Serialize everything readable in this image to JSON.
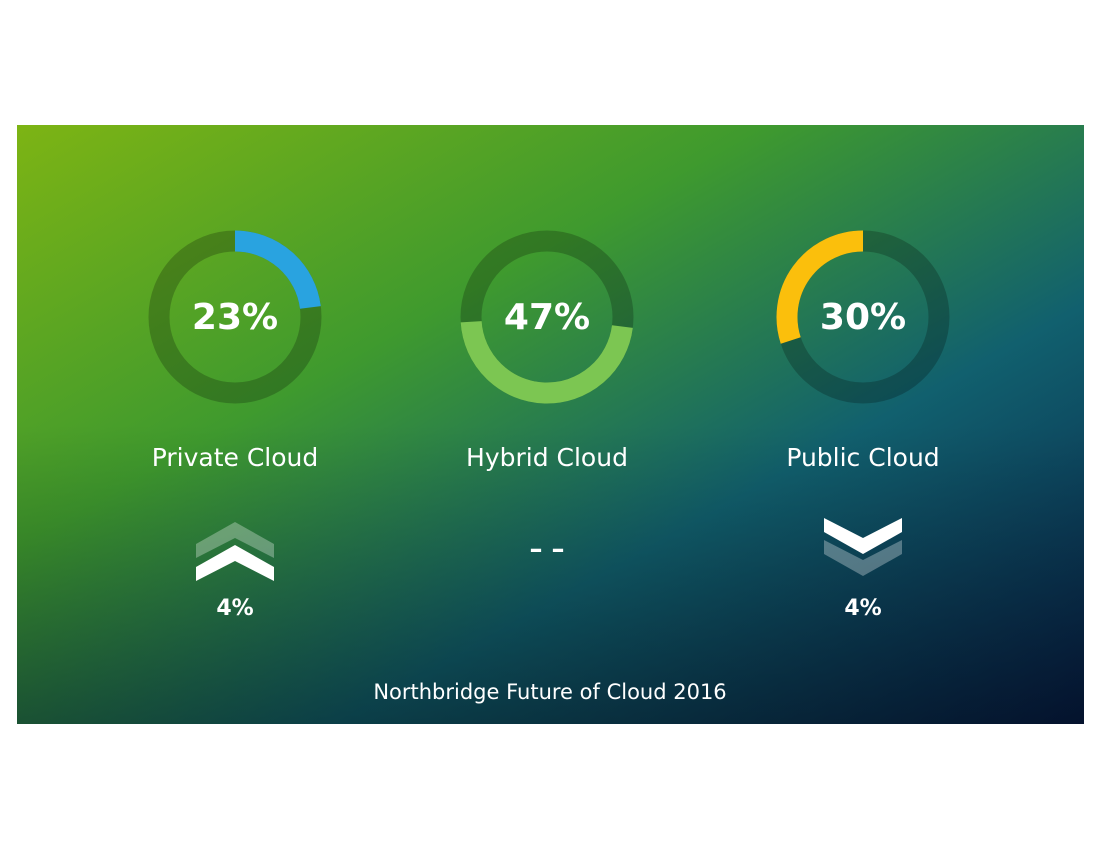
{
  "chart_data": [
    {
      "type": "donut",
      "title": "Private Cloud",
      "values": [
        23
      ],
      "value_labels": [
        "23%"
      ],
      "color": "#29a3e0",
      "change": {
        "direction": "up",
        "values": [
          4
        ],
        "value_labels": [
          "4%"
        ]
      }
    },
    {
      "type": "donut",
      "title": "Hybrid Cloud",
      "values": [
        47
      ],
      "value_labels": [
        "47%"
      ],
      "color": "#7cc652",
      "change": {
        "direction": "flat",
        "label": "– –"
      }
    },
    {
      "type": "donut",
      "title": "Public Cloud",
      "values": [
        30
      ],
      "value_labels": [
        "30%"
      ],
      "color": "#fbbf0c",
      "change": {
        "direction": "down",
        "values": [
          4
        ],
        "value_labels": [
          "4%"
        ]
      }
    }
  ],
  "footer": "Northbridge Future of Cloud 2016"
}
